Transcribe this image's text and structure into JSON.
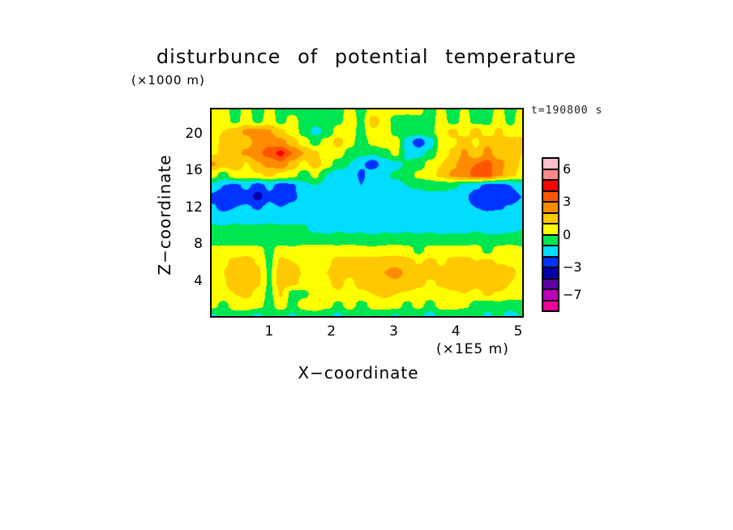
{
  "chart_data": {
    "type": "heatmap",
    "subtype": "filled_contour",
    "title": "disturbunce of potential temperature",
    "time_label": "t=190800 s",
    "x_axis": {
      "label": "X−coordinate",
      "units": "(×1E5 m)",
      "range": [
        0.05,
        5.09
      ],
      "ticks": [
        "1",
        "2",
        "3",
        "4",
        "5"
      ],
      "tick_values": [
        1,
        2,
        3,
        4,
        5
      ]
    },
    "z_axis": {
      "label": "Z−coordinate",
      "units": "(×1000 m)",
      "range": [
        0,
        22.8
      ],
      "ticks": [
        "20",
        "16",
        "12",
        "8",
        "4"
      ],
      "tick_values": [
        20,
        16,
        12,
        8,
        4
      ]
    },
    "levels": {
      "min": -7,
      "max": 7,
      "step": 1
    },
    "palette": [
      "#EE0099",
      "#BB00BB",
      "#5E00A5",
      "#0000AA",
      "#0033FF",
      "#00DDFF",
      "#00E650",
      "#FFFF00",
      "#FFC800",
      "#FF8C00",
      "#FF5500",
      "#FF0000",
      "#FF8888",
      "#FFC0C8"
    ],
    "colorbar_labels": [
      {
        "text": "6",
        "level": 6
      },
      {
        "text": "3",
        "level": 3
      },
      {
        "text": "0",
        "level": 0
      },
      {
        "text": "−3",
        "level": -3
      },
      {
        "text": "−7",
        "level": -7
      }
    ],
    "grid": {
      "cols": 28,
      "rows": 20,
      "x_range": [
        0.05,
        5.09
      ],
      "z_range": [
        22.8,
        0
      ],
      "values": [
        [
          0.6,
          0.5,
          -0.5,
          0.4,
          -0.6,
          0.4,
          -0.5,
          -0.4,
          -0.7,
          -0.8,
          -0.7,
          -0.5,
          0.5,
          -0.5,
          0.6,
          0.7,
          0.6,
          0.5,
          0.4,
          -0.6,
          0.4,
          -0.7,
          0.3,
          -0.6,
          -0.5,
          0.4,
          -0.5,
          0.4
        ],
        [
          0.7,
          0.6,
          -0.3,
          0.5,
          -0.4,
          0.6,
          -0.4,
          0.5,
          -0.5,
          -0.6,
          -0.4,
          -0.3,
          0.6,
          -0.3,
          1.3,
          0.8,
          -0.6,
          -0.7,
          -0.4,
          -0.4,
          0.5,
          -0.5,
          0.4,
          -0.4,
          -0.3,
          0.5,
          -0.3,
          0.6
        ],
        [
          0.8,
          1.0,
          1.4,
          2.2,
          2.5,
          2.1,
          1.2,
          0.6,
          -0.4,
          -1.3,
          -0.8,
          0.5,
          0.6,
          -0.4,
          0.9,
          0.8,
          -0.4,
          -0.5,
          -0.5,
          -0.3,
          0.6,
          1.3,
          0.5,
          1.4,
          0.5,
          1.2,
          0.4,
          0.8
        ],
        [
          0.7,
          1.2,
          2.0,
          1.6,
          2.4,
          2.8,
          2.4,
          1.5,
          0.5,
          -0.4,
          0.5,
          1.4,
          0.4,
          -0.6,
          0.3,
          0.6,
          0.6,
          -1.4,
          -2.6,
          -1.5,
          0.4,
          0.8,
          1.6,
          0.8,
          1.8,
          1.0,
          1.6,
          1.2
        ],
        [
          0.9,
          1.1,
          1.7,
          2.2,
          2.8,
          3.4,
          4.3,
          3.0,
          2.0,
          1.2,
          0.4,
          0.5,
          -0.4,
          -0.8,
          -0.9,
          -0.5,
          0.3,
          -1.2,
          -1.3,
          -0.8,
          0.5,
          1.2,
          2.2,
          1.2,
          2.4,
          1.4,
          2.0,
          1.0
        ],
        [
          2.2,
          1.4,
          1.8,
          0.9,
          1.9,
          2.3,
          2.8,
          1.6,
          0.7,
          1.5,
          0.5,
          -0.5,
          -1.0,
          -1.8,
          -2.5,
          -1.6,
          -1.2,
          -0.9,
          -0.6,
          0.4,
          1.0,
          1.8,
          2.6,
          3.0,
          3.3,
          2.4,
          1.6,
          0.9
        ],
        [
          0.4,
          -0.4,
          0.6,
          0.5,
          0.9,
          1.2,
          0.8,
          0.4,
          -0.5,
          0.3,
          -1.0,
          -1.6,
          -1.2,
          -2.2,
          -1.4,
          -1.1,
          -0.9,
          -0.7,
          0.3,
          0.6,
          1.3,
          2.2,
          2.6,
          3.4,
          3.6,
          2.2,
          1.3,
          0.7
        ],
        [
          -1.2,
          -2.0,
          -2.2,
          -1.8,
          -2.4,
          -1.8,
          -2.4,
          -2.2,
          -1.2,
          -1.0,
          -1.3,
          -1.5,
          -1.2,
          -2.0,
          -1.3,
          -1.0,
          -1.2,
          -1.0,
          -0.8,
          -0.6,
          -0.5,
          -0.8,
          -1.2,
          -1.8,
          -2.3,
          -2.4,
          -2.0,
          -1.3
        ],
        [
          -2.3,
          -2.8,
          -2.6,
          -2.4,
          -3.4,
          -2.2,
          -2.7,
          -2.2,
          -1.7,
          -1.4,
          -1.6,
          -1.8,
          -1.5,
          -1.3,
          -1.6,
          -1.3,
          -1.5,
          -1.4,
          -1.6,
          -1.3,
          -1.4,
          -1.6,
          -1.8,
          -2.5,
          -2.9,
          -2.8,
          -2.6,
          -2.0
        ],
        [
          -1.9,
          -2.2,
          -2.0,
          -1.9,
          -2.1,
          -1.8,
          -2.0,
          -1.8,
          -1.6,
          -1.5,
          -1.7,
          -1.6,
          -1.5,
          -1.6,
          -1.7,
          -1.5,
          -1.6,
          -1.5,
          -1.7,
          -1.5,
          -1.6,
          -1.7,
          -1.8,
          -2.0,
          -2.2,
          -2.1,
          -1.9,
          -1.6
        ],
        [
          -1.5,
          -1.6,
          -1.4,
          -1.5,
          -1.3,
          -1.4,
          -1.5,
          -1.3,
          -1.2,
          -1.4,
          -1.3,
          -1.2,
          -1.3,
          -1.2,
          -1.4,
          -1.3,
          -1.4,
          -1.3,
          -1.2,
          -1.1,
          -1.3,
          -1.4,
          -1.2,
          -1.3,
          -1.5,
          -1.4,
          -1.3,
          -1.2
        ],
        [
          -0.7,
          -0.8,
          -0.6,
          -0.7,
          -0.8,
          -0.6,
          -0.7,
          -0.8,
          -0.9,
          -1.2,
          -1.3,
          -1.1,
          -1.3,
          -1.2,
          -1.4,
          -1.2,
          -1.3,
          -1.1,
          -1.3,
          -1.2,
          -1.4,
          -1.2,
          -1.3,
          -1.1,
          -1.3,
          -1.4,
          -1.2,
          -1.0
        ],
        [
          -0.5,
          -0.6,
          -0.4,
          -0.5,
          -0.6,
          -0.4,
          -0.5,
          -0.6,
          -0.5,
          -0.4,
          -0.6,
          -0.5,
          -0.4,
          -0.5,
          -0.6,
          -0.5,
          -0.4,
          -0.6,
          -0.5,
          -0.4,
          -0.5,
          -0.6,
          -0.5,
          -0.4,
          -0.6,
          -0.5,
          -0.4,
          -0.5
        ],
        [
          0.4,
          0.5,
          0.3,
          0.5,
          0.4,
          -0.3,
          0.5,
          0.3,
          0.6,
          0.5,
          0.7,
          0.5,
          0.6,
          0.4,
          0.3,
          0.5,
          0.6,
          0.5,
          -0.3,
          0.4,
          0.5,
          0.6,
          0.4,
          0.5,
          -0.3,
          0.4,
          0.5,
          0.3
        ],
        [
          0.7,
          0.8,
          1.3,
          1.5,
          0.9,
          -0.3,
          1.2,
          1.0,
          0.8,
          0.7,
          0.8,
          1.3,
          1.2,
          1.4,
          1.5,
          1.4,
          1.5,
          1.3,
          0.9,
          1.2,
          0.9,
          1.2,
          1.4,
          1.0,
          1.2,
          0.9,
          0.8,
          0.7
        ],
        [
          0.8,
          1.0,
          1.6,
          1.8,
          1.2,
          -0.2,
          1.6,
          1.4,
          0.9,
          0.8,
          1.0,
          1.5,
          1.2,
          1.6,
          1.8,
          2.0,
          2.4,
          1.8,
          1.4,
          1.3,
          1.2,
          1.6,
          1.7,
          1.4,
          1.6,
          1.7,
          1.2,
          0.8
        ],
        [
          0.7,
          0.9,
          1.5,
          1.6,
          1.1,
          -0.2,
          1.5,
          1.2,
          0.8,
          0.7,
          0.9,
          1.2,
          0.8,
          1.3,
          1.6,
          1.7,
          1.8,
          1.6,
          1.2,
          0.9,
          1.1,
          1.3,
          1.5,
          1.2,
          1.5,
          1.6,
          1.0,
          0.7
        ],
        [
          0.5,
          0.7,
          1.0,
          1.2,
          0.8,
          -0.3,
          1.1,
          -0.4,
          -0.3,
          0.5,
          0.7,
          0.9,
          0.5,
          0.8,
          1.0,
          1.2,
          1.0,
          0.9,
          0.7,
          0.6,
          0.8,
          0.9,
          1.0,
          0.8,
          1.1,
          0.9,
          0.6,
          0.5
        ],
        [
          0.4,
          -0.3,
          0.5,
          0.6,
          0.4,
          -0.4,
          0.6,
          -0.4,
          0.5,
          0.6,
          0.4,
          -0.3,
          0.5,
          -0.4,
          0.3,
          0.6,
          0.5,
          -0.3,
          0.4,
          -0.4,
          0.5,
          0.4,
          0.3,
          -0.4,
          -0.5,
          -0.3,
          -0.5,
          -0.4
        ],
        [
          -1.1,
          -0.8,
          -0.4,
          -0.6,
          -1.2,
          -0.5,
          -0.7,
          -1.1,
          -0.6,
          -0.4,
          -0.8,
          -1.2,
          -0.6,
          -0.9,
          -0.5,
          -0.7,
          -1.1,
          -0.6,
          -0.8,
          -1.3,
          -0.7,
          -0.5,
          -0.9,
          -0.6,
          -1.2,
          -0.8,
          -1.4,
          -0.9
        ]
      ]
    }
  }
}
